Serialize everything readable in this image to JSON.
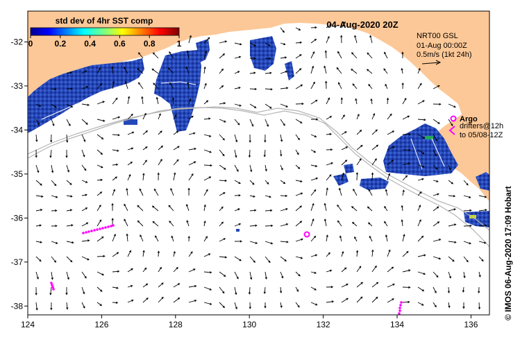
{
  "map": {
    "date_title": "04-Aug-2020 20Z",
    "colorbar": {
      "title": "std dev of 4hr SST comp",
      "ticks": [
        "0",
        "0.2",
        "0.4",
        "0.6",
        "0.8",
        "1"
      ]
    },
    "legend": {
      "line1": "NRT00 GSL",
      "line2": "01-Aug 00:00Z",
      "line3": "0.5m/s (1kt 24h)"
    },
    "argo": {
      "label": "Argo",
      "drifters_line1": "drifters@12h",
      "drifters_line2": "to 05/08-12Z"
    },
    "credit": "© IMOS 06-Aug-2020 17:09 Hobart",
    "x_axis": {
      "ticks": [
        "124",
        "126",
        "128",
        "130",
        "132",
        "134",
        "136"
      ],
      "values": [
        124,
        126,
        128,
        130,
        132,
        134,
        136
      ]
    },
    "y_axis": {
      "ticks": [
        "-32",
        "-33",
        "-34",
        "-35",
        "-36",
        "-37",
        "-38"
      ],
      "values": [
        -32,
        -33,
        -34,
        -35,
        -36,
        -37,
        -38
      ]
    },
    "extent": {
      "lon": [
        124,
        136.5
      ],
      "lat": [
        -38.2,
        -31.3
      ]
    },
    "colors": {
      "land": "#fdc897",
      "ocean": "#ffffff",
      "sst_blue": "#1c3aa6",
      "drifter": "#ff00ff",
      "isobath": "#b4b4b4"
    }
  }
}
